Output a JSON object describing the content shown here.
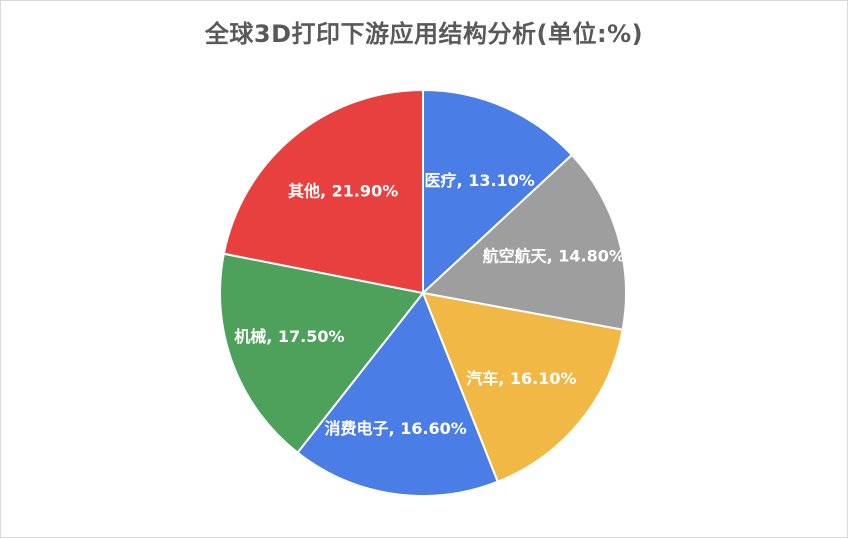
{
  "chart_data": {
    "type": "pie",
    "title": "全球3D打印下游应用结构分析(单位:%)",
    "slices": [
      {
        "label": "医疗",
        "value": 13.1,
        "display": "医疗, 13.10%",
        "color": "#4a7ee6"
      },
      {
        "label": "航空航天",
        "value": 14.8,
        "display": "航空航天, 14.80%",
        "color": "#9e9e9e"
      },
      {
        "label": "汽车",
        "value": 16.1,
        "display": "汽车, 16.10%",
        "color": "#f2b845"
      },
      {
        "label": "消费电子",
        "value": 16.6,
        "display": "消费电子, 16.60%",
        "color": "#4a7ee6"
      },
      {
        "label": "机械",
        "value": 17.5,
        "display": "机械, 17.50%",
        "color": "#4ea15a"
      },
      {
        "label": "其他",
        "value": 21.9,
        "display": "其他, 21.90%",
        "color": "#e8403f"
      }
    ],
    "start_angle": "12 o'clock",
    "direction": "clockwise",
    "legend": "none"
  }
}
